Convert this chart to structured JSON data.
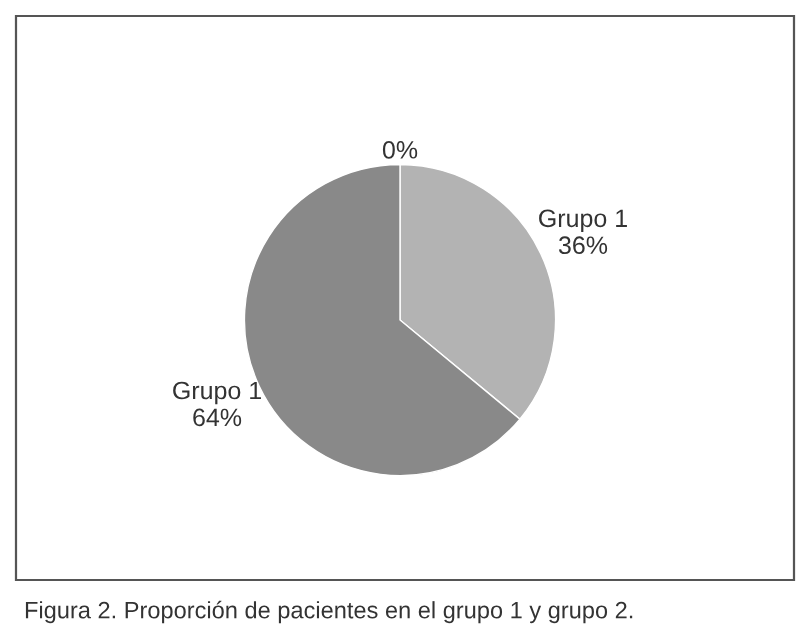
{
  "chart_data": {
    "type": "pie",
    "categories": [
      null,
      "Grupo 1",
      "Grupo 1"
    ],
    "values": [
      0,
      36,
      64
    ],
    "value_labels": [
      "0%",
      "36%",
      "64%"
    ],
    "colors": [
      "#d9d9d9",
      "#b3b3b3",
      "#898989"
    ],
    "annotations": [
      "Figura 2. Proporción de pacientes en el grupo 1 y grupo 2."
    ]
  }
}
